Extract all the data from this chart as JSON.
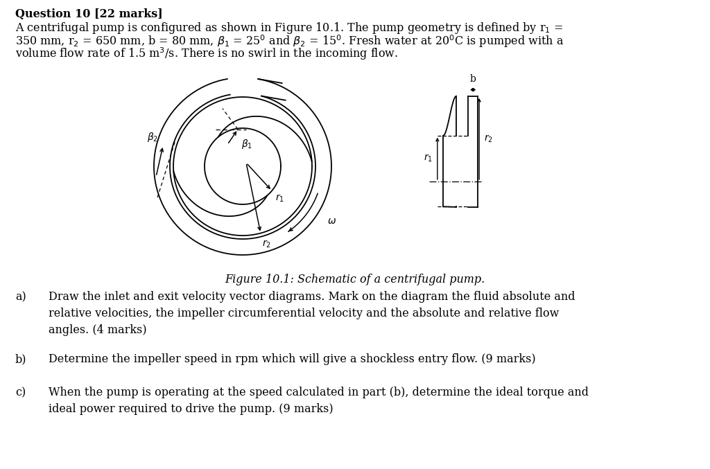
{
  "bg": "#ffffff",
  "fg": "#000000",
  "header_bold": "Question 10 [22 marks]",
  "body_line1": "A centrifugal pump is configured as shown in Figure 10.1. The pump geometry is defined by r$_1$ =",
  "body_line2": "350 mm, r$_2$ = 650 mm, b = 80 mm, $\\beta_1$ = 25$^0$ and $\\beta_2$ = 15$^0$. Fresh water at 20$^0$C is pumped with a",
  "body_line3": "volume flow rate of 1.5 m$^3$/s. There is no swirl in the incoming flow.",
  "caption": "Figure 10.1: Schematic of a centrifugal pump.",
  "part_a_label": "a)",
  "part_a_text": "Draw the inlet and exit velocity vector diagrams. Mark on the diagram the fluid absolute and\nrelative velocities, the impeller circumferential velocity and the absolute and relative flow\nangles. (4 marks)",
  "part_b_label": "b)",
  "part_b_text": "Determine the impeller speed in rpm which will give a shockless entry flow. (9 marks)",
  "part_c_label": "c)",
  "part_c_text": "When the pump is operating at the speed calculated in part (b), determine the ideal torque and\nideal power required to drive the pump. (9 marks)",
  "fontsize": 11.5,
  "lw": 1.3
}
